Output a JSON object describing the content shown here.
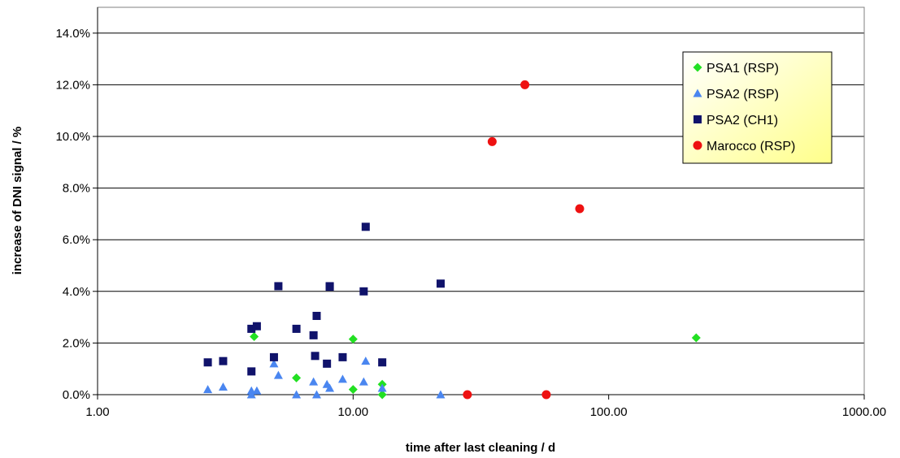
{
  "chart_data": {
    "type": "scatter",
    "x_scale": "log",
    "xlabel": "time after last cleaning / d",
    "ylabel": "increase of DNI signal / %",
    "xlim": [
      1,
      1000
    ],
    "ylim": [
      0,
      0.15
    ],
    "x_ticks": [
      1,
      10,
      100,
      1000
    ],
    "x_tick_labels": [
      "1.00",
      "10.00",
      "100.00",
      "1000.00"
    ],
    "y_ticks": [
      0,
      0.02,
      0.04,
      0.06,
      0.08,
      0.1,
      0.12,
      0.14
    ],
    "y_tick_labels": [
      "0.0%",
      "2.0%",
      "4.0%",
      "6.0%",
      "8.0%",
      "10.0%",
      "12.0%",
      "14.0%"
    ],
    "grid": "horizontal",
    "legend_position": "top-right",
    "series": [
      {
        "name": "PSA1 (RSP)",
        "marker": "diamond",
        "color": "#22e022",
        "points": [
          [
            4.1,
            0.0225
          ],
          [
            6.0,
            0.0065
          ],
          [
            10.0,
            0.0215
          ],
          [
            10.0,
            0.002
          ],
          [
            13.0,
            0.004
          ],
          [
            13.0,
            0.0
          ],
          [
            220,
            0.022
          ]
        ]
      },
      {
        "name": "PSA2 (RSP)",
        "marker": "triangle",
        "color": "#4a86f0",
        "points": [
          [
            2.7,
            0.002
          ],
          [
            3.1,
            0.003
          ],
          [
            4.0,
            0.0015
          ],
          [
            4.0,
            0.0
          ],
          [
            4.2,
            0.0015
          ],
          [
            4.9,
            0.012
          ],
          [
            5.1,
            0.0075
          ],
          [
            6.0,
            0.0
          ],
          [
            7.0,
            0.005
          ],
          [
            7.2,
            0.0
          ],
          [
            7.9,
            0.004
          ],
          [
            8.1,
            0.0025
          ],
          [
            9.1,
            0.006
          ],
          [
            11.0,
            0.005
          ],
          [
            11.2,
            0.013
          ],
          [
            13.0,
            0.0025
          ],
          [
            22.0,
            0.0
          ]
        ]
      },
      {
        "name": "PSA2 (CH1)",
        "marker": "square",
        "color": "#10136b",
        "points": [
          [
            2.7,
            0.0125
          ],
          [
            3.1,
            0.013
          ],
          [
            4.0,
            0.0255
          ],
          [
            4.0,
            0.009
          ],
          [
            4.2,
            0.0265
          ],
          [
            4.9,
            0.0145
          ],
          [
            5.1,
            0.042
          ],
          [
            6.0,
            0.0255
          ],
          [
            7.0,
            0.023
          ],
          [
            7.1,
            0.015
          ],
          [
            7.2,
            0.0305
          ],
          [
            7.9,
            0.012
          ],
          [
            8.1,
            0.042
          ],
          [
            8.1,
            0.0418
          ],
          [
            9.1,
            0.0145
          ],
          [
            11.0,
            0.04
          ],
          [
            11.2,
            0.065
          ],
          [
            13.0,
            0.0125
          ],
          [
            22.0,
            0.043
          ]
        ]
      },
      {
        "name": "Marocco (RSP)",
        "marker": "circle",
        "color": "#ee1111",
        "points": [
          [
            28,
            0.0
          ],
          [
            35,
            0.098
          ],
          [
            47,
            0.12
          ],
          [
            57,
            0.0
          ],
          [
            77,
            0.072
          ]
        ]
      }
    ]
  }
}
